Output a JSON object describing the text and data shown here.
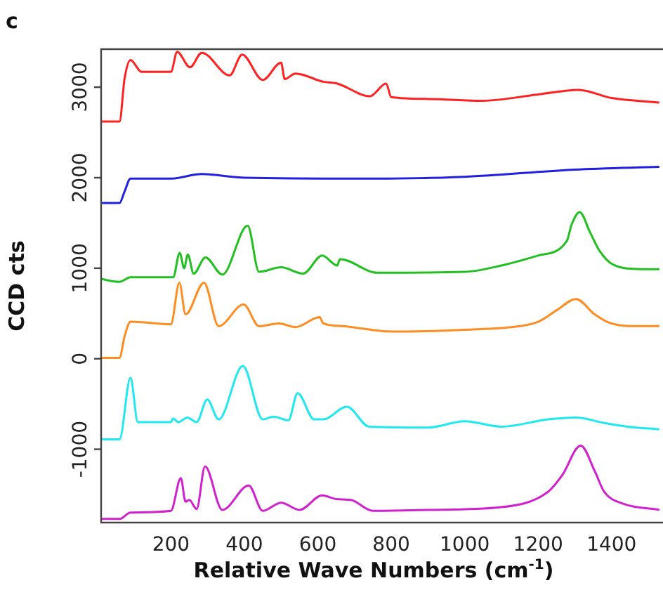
{
  "chart_data": {
    "type": "line",
    "title": "c",
    "xlabel": "Relative Wave Numbers (cm$^{-1}$)",
    "ylabel": "CCD cts",
    "xlim": [
      10,
      1540
    ],
    "xticks": [
      200,
      400,
      600,
      800,
      1000,
      1200,
      1400
    ],
    "ylim": [
      -1810,
      3420
    ],
    "yticks": [
      -1000,
      0,
      1000,
      2000,
      3000
    ],
    "grid": false,
    "legend": false,
    "marker": "none",
    "line_style": "solid",
    "series": [
      {
        "color": "#ff2020",
        "x": [
          10,
          60,
          74,
          90,
          120,
          200,
          217,
          252,
          284,
          360,
          394,
          450,
          500,
          510,
          539,
          615,
          653,
          742,
          786,
          800,
          900,
          1048,
          1200,
          1310,
          1400,
          1530
        ],
        "values": [
          2620,
          2620,
          3100,
          3300,
          3170,
          3170,
          3390,
          3220,
          3380,
          3130,
          3360,
          3080,
          3270,
          3090,
          3150,
          3060,
          3040,
          2900,
          3040,
          2890,
          2870,
          2850,
          2920,
          2970,
          2880,
          2830
        ]
      },
      {
        "color": "#2020e0",
        "x": [
          10,
          60,
          74,
          90,
          200,
          284,
          400,
          727,
          1000,
          1300,
          1530
        ],
        "values": [
          1720,
          1720,
          1850,
          1990,
          1990,
          2040,
          2000,
          1990,
          2010,
          2090,
          2120
        ]
      },
      {
        "color": "#20c020",
        "x": [
          10,
          60,
          90,
          206,
          224,
          236,
          246,
          262,
          294,
          340,
          409,
          440,
          500,
          560,
          612,
          653,
          660,
          762,
          1000,
          1100,
          1200,
          1278,
          1291,
          1313,
          1341,
          1366,
          1404,
          1481,
          1530
        ],
        "values": [
          880,
          850,
          900,
          900,
          1170,
          1000,
          1150,
          940,
          1120,
          930,
          1470,
          960,
          1010,
          940,
          1140,
          1030,
          1100,
          950,
          960,
          1030,
          1140,
          1300,
          1480,
          1620,
          1400,
          1200,
          1040,
          990,
          990
        ]
      },
      {
        "color": "#ff8c20",
        "x": [
          10,
          60,
          74,
          90,
          200,
          223,
          240,
          290,
          330,
          398,
          440,
          494,
          540,
          605,
          615,
          666,
          800,
          1000,
          1150,
          1201,
          1252,
          1303,
          1354,
          1392,
          1456,
          1530
        ],
        "values": [
          10,
          10,
          250,
          410,
          380,
          840,
          490,
          840,
          360,
          600,
          360,
          390,
          350,
          460,
          390,
          360,
          300,
          320,
          360,
          410,
          540,
          660,
          490,
          400,
          360,
          360
        ]
      },
      {
        "color": "#20e8f0",
        "x": [
          10,
          60,
          90,
          110,
          200,
          206,
          220,
          245,
          270,
          299,
          330,
          396,
          450,
          480,
          520,
          545,
          590,
          615,
          679,
          740,
          900,
          1000,
          1100,
          1227,
          1303,
          1380,
          1443,
          1530
        ],
        "values": [
          -890,
          -890,
          -210,
          -700,
          -700,
          -660,
          -700,
          -650,
          -700,
          -450,
          -670,
          -80,
          -670,
          -640,
          -680,
          -380,
          -670,
          -670,
          -530,
          -750,
          -760,
          -690,
          -750,
          -670,
          -650,
          -710,
          -750,
          -780
        ]
      },
      {
        "color": "#d020d0",
        "x": [
          10,
          60,
          90,
          200,
          227,
          240,
          250,
          270,
          293,
          340,
          412,
          450,
          500,
          550,
          612,
          650,
          690,
          750,
          900,
          1100,
          1227,
          1265,
          1316,
          1354,
          1380,
          1430,
          1530
        ],
        "values": [
          -1770,
          -1770,
          -1700,
          -1680,
          -1320,
          -1580,
          -1560,
          -1660,
          -1190,
          -1670,
          -1400,
          -1680,
          -1590,
          -1670,
          -1510,
          -1550,
          -1560,
          -1680,
          -1670,
          -1640,
          -1470,
          -1290,
          -960,
          -1240,
          -1470,
          -1600,
          -1670
        ]
      }
    ]
  }
}
